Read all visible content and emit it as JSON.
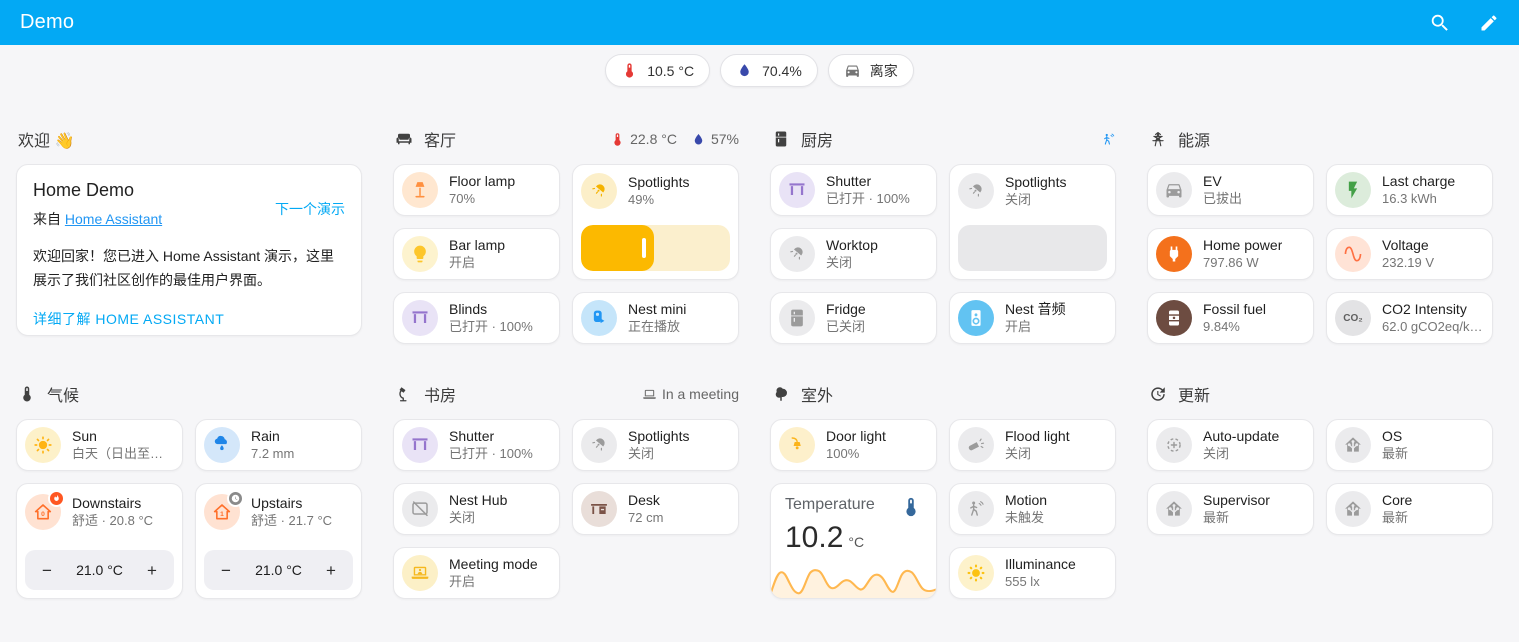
{
  "app": {
    "title": "Demo"
  },
  "stepper": {
    "minus": "−",
    "plus": "+"
  },
  "colors": {
    "appbar": "#03a9f4",
    "background": "#f6f6f8",
    "accent": "#03a9f4"
  },
  "chips": [
    {
      "id": "temperature",
      "icon": "thermometer",
      "color": "#e53935",
      "label": "10.5 °C"
    },
    {
      "id": "humidity",
      "icon": "water",
      "color": "#3949ab",
      "label": "70.4%"
    },
    {
      "id": "presence",
      "icon": "car",
      "color": "#757575",
      "label": "离家"
    }
  ],
  "columns": [
    {
      "sections": [
        {
          "id": "welcome",
          "title": "欢迎 👋",
          "type": "welcome",
          "welcome": {
            "title": "Home Demo",
            "from_prefix": "来自 ",
            "from_link": "Home Assistant",
            "next_label": "下一个演示",
            "body": "欢迎回家！您已进入 Home Assistant 演示，这里展示了我们社区创作的最佳用户界面。",
            "learn_more": "详细了解 HOME ASSISTANT"
          }
        },
        {
          "id": "climate",
          "title": "气候",
          "icon": "thermometer",
          "cards": [
            {
              "id": "sun",
              "name": "Sun",
              "state": "白天（日出至日…",
              "icon": "sun",
              "fg": "#ffb414",
              "bg": "#fdf1c9"
            },
            {
              "id": "rain",
              "name": "Rain",
              "state": "7.2 mm",
              "icon": "rainy",
              "fg": "#2086e8",
              "bg": "#d4e7fa"
            },
            {
              "id": "downstairs",
              "name": "Downstairs",
              "state": "舒适 · 20.8 °C",
              "icon": "home-0",
              "fg": "#ff6f2a",
              "bg": "#ffe2d2",
              "badge": {
                "icon": "fire",
                "bg": "#ff5722"
              },
              "stepper": {
                "value": "21.0 °C"
              }
            },
            {
              "id": "upstairs",
              "name": "Upstairs",
              "state": "舒适 · 21.7 °C",
              "icon": "home-1",
              "fg": "#ff6f2a",
              "bg": "#ffe2d2",
              "badge": {
                "icon": "clock",
                "bg": "#8a8a8a"
              },
              "stepper": {
                "value": "21.0 °C"
              }
            }
          ]
        }
      ]
    },
    {
      "sections": [
        {
          "id": "living-room",
          "title": "客厅",
          "icon": "sofa",
          "suffix": [
            {
              "id": "lr-temperature",
              "icon": "thermometer",
              "color": "#e53935",
              "label": "22.8 °C"
            },
            {
              "id": "lr-humidity",
              "icon": "water",
              "color": "#3949ab",
              "label": "57%"
            }
          ],
          "cards": [
            {
              "id": "floor-lamp",
              "name": "Floor lamp",
              "state": "70%",
              "icon": "floor-lamp",
              "fg": "#ff9040",
              "bg": "#ffe7d0"
            },
            {
              "id": "lr-spotlights",
              "name": "Spotlights",
              "state": "49%",
              "icon": "spot",
              "fg": "#f5b301",
              "bg": "#fcefc9",
              "slider": {
                "percent": 49,
                "fill": "#fcb900",
                "track": "#fbefcd",
                "handle": true
              }
            },
            {
              "id": "bar-lamp",
              "name": "Bar lamp",
              "state": "开启",
              "icon": "bulb",
              "fg": "#fdc62a",
              "bg": "#fdf3ce"
            },
            {
              "id": "blinds",
              "name": "Blinds",
              "state": "已打开 · 100%",
              "icon": "shade",
              "fg": "#9575cd",
              "bg": "#e9e3f6"
            },
            {
              "id": "nest-mini",
              "name": "Nest mini",
              "state": "正在播放",
              "icon": "nest-mini",
              "fg": "#2196f3",
              "bg": "#c5e5fa"
            }
          ]
        },
        {
          "id": "study",
          "title": "书房",
          "icon": "desk-lamp",
          "suffix": [
            {
              "id": "meeting-status",
              "icon": "laptop",
              "color": "#6f6f6f",
              "label": "In a meeting"
            }
          ],
          "cards": [
            {
              "id": "study-shutter",
              "name": "Shutter",
              "state": "已打开 · 100%",
              "icon": "shade",
              "fg": "#9575cd",
              "bg": "#e9e3f6"
            },
            {
              "id": "study-spotlights",
              "name": "Spotlights",
              "state": "关闭",
              "icon": "spot",
              "fg": "#9b9b9b",
              "bg": "#ebebed"
            },
            {
              "id": "nest-hub",
              "name": "Nest Hub",
              "state": "关闭",
              "icon": "tablet-off",
              "fg": "#9b9b9b",
              "bg": "#ebebed"
            },
            {
              "id": "desk",
              "name": "Desk",
              "state": "72 cm",
              "icon": "desk",
              "fg": "#7b5347",
              "bg": "#e9ded9"
            },
            {
              "id": "meeting-mode",
              "name": "Meeting mode",
              "state": "开启",
              "icon": "laptop-account",
              "fg": "#f5b81f",
              "bg": "#fcf0c7"
            }
          ]
        }
      ]
    },
    {
      "sections": [
        {
          "id": "kitchen",
          "title": "厨房",
          "icon": "fridge",
          "suffix": [
            {
              "id": "kitchen-motion",
              "icon": "motion",
              "color": "#2196f3",
              "label": ""
            }
          ],
          "cards": [
            {
              "id": "kitchen-shutter",
              "name": "Shutter",
              "state": "已打开 · 100%",
              "icon": "shade",
              "fg": "#9575cd",
              "bg": "#e9e3f6"
            },
            {
              "id": "kitchen-spotlights",
              "name": "Spotlights",
              "state": "关闭",
              "icon": "spot",
              "fg": "#9b9b9b",
              "bg": "#ebebed",
              "slider": {
                "percent": 0,
                "fill": "#e8e8ea",
                "track": "#e8e8ea",
                "handle": false
              }
            },
            {
              "id": "worktop",
              "name": "Worktop",
              "state": "关闭",
              "icon": "spot",
              "fg": "#9b9b9b",
              "bg": "#ebebed"
            },
            {
              "id": "fridge",
              "name": "Fridge",
              "state": "已关闭",
              "icon": "fridge",
              "fg": "#9b9b9b",
              "bg": "#ebebed"
            },
            {
              "id": "nest-audio",
              "name": "Nest 音频",
              "state": "开启",
              "icon": "speaker",
              "fg": "#ffffff",
              "bg": "#62c3f2"
            }
          ]
        },
        {
          "id": "outdoor",
          "title": "室外",
          "icon": "tree",
          "cards": [
            {
              "id": "door-light",
              "name": "Door light",
              "state": "100%",
              "icon": "door-light",
              "fg": "#fbb41c",
              "bg": "#fdf0cb"
            },
            {
              "id": "flood-light",
              "name": "Flood light",
              "state": "关闭",
              "icon": "flood",
              "fg": "#9b9b9b",
              "bg": "#ebebed"
            },
            {
              "id": "outdoor-temperature",
              "type": "graph",
              "name": "Temperature",
              "value": "10.2",
              "unit": "°C",
              "icon": "thermometer",
              "fg": "#35689b",
              "line": "#ffb850"
            },
            {
              "id": "outdoor-motion",
              "name": "Motion",
              "state": "未触发",
              "icon": "motion",
              "fg": "#9b9b9b",
              "bg": "#ebebed"
            },
            {
              "id": "illuminance",
              "name": "Illuminance",
              "state": "555 lx",
              "icon": "brightness",
              "fg": "#fcc212",
              "bg": "#fdf2cb"
            }
          ]
        }
      ]
    },
    {
      "sections": [
        {
          "id": "energy",
          "title": "能源",
          "icon": "tower",
          "cards": [
            {
              "id": "ev",
              "name": "EV",
              "state": "已拔出",
              "icon": "car",
              "fg": "#9b9b9b",
              "bg": "#ebebed"
            },
            {
              "id": "last-charge",
              "name": "Last charge",
              "state": "16.3 kWh",
              "icon": "flash",
              "fg": "#43a047",
              "bg": "#dcecdb"
            },
            {
              "id": "home-power",
              "name": "Home power",
              "state": "797.86 W",
              "icon": "plug",
              "fg": "#ffffff",
              "bg": "#f4711c"
            },
            {
              "id": "voltage",
              "name": "Voltage",
              "state": "232.19 V",
              "icon": "sine",
              "fg": "#ff7043",
              "bg": "#ffe3d6"
            },
            {
              "id": "fossil-fuel",
              "name": "Fossil fuel",
              "state": "9.84%",
              "icon": "barrel",
              "fg": "#ffffff",
              "bg": "#6d4c41"
            },
            {
              "id": "co2-intensity",
              "name": "CO2 Intensity",
              "state": "62.0 gCO2eq/k…",
              "icon": "co2",
              "fg": "#5f5f5f",
              "bg": "#e3e3e5"
            }
          ]
        },
        {
          "id": "updates",
          "title": "更新",
          "icon": "update",
          "cards": [
            {
              "id": "auto-update",
              "name": "Auto-update",
              "state": "关闭",
              "icon": "auto-update",
              "fg": "#9b9b9b",
              "bg": "#ebebed"
            },
            {
              "id": "os",
              "name": "OS",
              "state": "最新",
              "icon": "ha-logo",
              "fg": "#9b9b9b",
              "bg": "#ebebed"
            },
            {
              "id": "supervisor",
              "name": "Supervisor",
              "state": "最新",
              "icon": "ha-logo",
              "fg": "#9b9b9b",
              "bg": "#ebebed"
            },
            {
              "id": "core",
              "name": "Core",
              "state": "最新",
              "icon": "ha-logo",
              "fg": "#9b9b9b",
              "bg": "#ebebed"
            }
          ]
        }
      ]
    }
  ]
}
